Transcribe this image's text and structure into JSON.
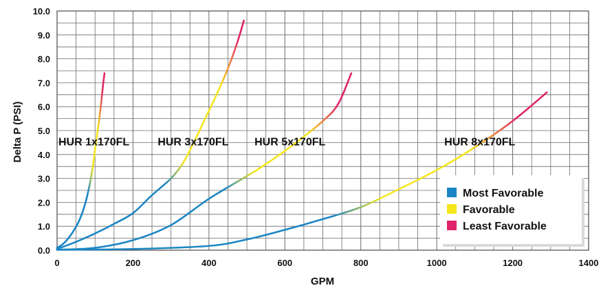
{
  "chart_data": {
    "type": "line",
    "xlabel": "GPM",
    "ylabel": "Delta P (PSI)",
    "xlim": [
      0,
      1400
    ],
    "ylim": [
      0,
      10
    ],
    "x_ticks": [
      "0",
      "200",
      "400",
      "600",
      "800",
      "1000",
      "1200",
      "1400"
    ],
    "y_ticks": [
      "0.0",
      "1.0",
      "2.0",
      "3.0",
      "4.0",
      "5.0",
      "6.0",
      "7.0",
      "8.0",
      "9.0",
      "10.0"
    ],
    "grid": true,
    "colors": {
      "most": "#1b86c4",
      "favorable": "#f5e61e",
      "least": "#e0236a"
    },
    "legend": {
      "placement": "bottom-right",
      "entries": [
        {
          "key": "most",
          "label": "Most Favorable"
        },
        {
          "key": "favorable",
          "label": "Favorable"
        },
        {
          "key": "least",
          "label": "Least Favorable"
        }
      ]
    },
    "series": [
      {
        "name": "HUR 1x170FL",
        "points": [
          [
            0,
            0.1
          ],
          [
            15,
            0.25
          ],
          [
            30,
            0.5
          ],
          [
            45,
            0.85
          ],
          [
            60,
            1.3
          ],
          [
            75,
            2.0
          ],
          [
            88,
            2.9
          ],
          [
            95,
            3.6
          ],
          [
            100,
            4.2
          ],
          [
            106,
            4.9
          ],
          [
            112,
            5.6
          ],
          [
            117,
            6.3
          ],
          [
            121,
            6.9
          ],
          [
            125,
            7.4
          ]
        ],
        "zones": [
          [
            "most",
            0,
            88
          ],
          [
            "favorable",
            88,
            114
          ],
          [
            "least",
            114,
            125
          ]
        ]
      },
      {
        "name": "HUR 3x170FL",
        "points": [
          [
            0,
            0.05
          ],
          [
            50,
            0.35
          ],
          [
            100,
            0.7
          ],
          [
            150,
            1.1
          ],
          [
            200,
            1.55
          ],
          [
            250,
            2.3
          ],
          [
            300,
            3.0
          ],
          [
            330,
            3.6
          ],
          [
            360,
            4.5
          ],
          [
            390,
            5.5
          ],
          [
            420,
            6.5
          ],
          [
            450,
            7.6
          ],
          [
            475,
            8.7
          ],
          [
            492,
            9.6
          ]
        ],
        "zones": [
          [
            "most",
            0,
            310
          ],
          [
            "favorable",
            310,
            455
          ],
          [
            "least",
            455,
            492
          ]
        ]
      },
      {
        "name": "HUR 5x170FL",
        "points": [
          [
            0,
            0.02
          ],
          [
            100,
            0.1
          ],
          [
            200,
            0.42
          ],
          [
            300,
            1.05
          ],
          [
            400,
            2.15
          ],
          [
            500,
            3.1
          ],
          [
            550,
            3.6
          ],
          [
            600,
            4.15
          ],
          [
            650,
            4.75
          ],
          [
            700,
            5.4
          ],
          [
            740,
            6.1
          ],
          [
            775,
            7.4
          ]
        ],
        "zones": [
          [
            "most",
            0,
            480
          ],
          [
            "favorable",
            480,
            700
          ],
          [
            "least",
            700,
            775
          ]
        ]
      },
      {
        "name": "HUR 8x170FL",
        "points": [
          [
            0,
            0.02
          ],
          [
            200,
            0.05
          ],
          [
            400,
            0.18
          ],
          [
            500,
            0.45
          ],
          [
            600,
            0.85
          ],
          [
            700,
            1.3
          ],
          [
            800,
            1.8
          ],
          [
            900,
            2.55
          ],
          [
            1000,
            3.35
          ],
          [
            1100,
            4.3
          ],
          [
            1200,
            5.4
          ],
          [
            1290,
            6.6
          ]
        ],
        "zones": [
          [
            "most",
            0,
            790
          ],
          [
            "favorable",
            790,
            1150
          ],
          [
            "least",
            1150,
            1290
          ]
        ]
      }
    ]
  }
}
